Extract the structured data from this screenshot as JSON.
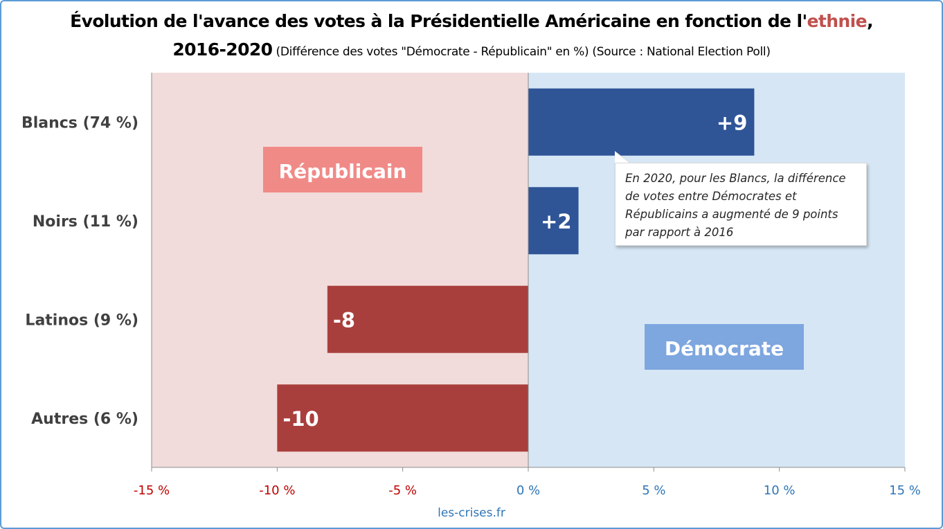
{
  "title": {
    "line1_main": "Évolution de l'avance des votes à la Présidentielle Américaine en fonction de l'",
    "line1_highlight": "ethnie",
    "line1_end": ",",
    "line2_bold": "2016-2020",
    "line2_rest": " (Différence des votes \"Démocrate - Républicain\" en %) (Source : National Election Poll)"
  },
  "chart_data": {
    "type": "bar",
    "orientation": "horizontal",
    "categories": [
      "Blancs (74 %)",
      "Noirs (11 %)",
      "Latinos (9 %)",
      "Autres (6 %)"
    ],
    "values": [
      9,
      2,
      -8,
      -10
    ],
    "data_labels": [
      "+9",
      "+2",
      "-8",
      "-10"
    ],
    "xlim": [
      -15,
      15
    ],
    "x_ticks": [
      -15,
      -10,
      -5,
      0,
      5,
      10,
      15
    ],
    "x_tick_labels": [
      "-15 %",
      "-10 %",
      "-5 %",
      "0 %",
      "5 %",
      "10 %",
      "15 %"
    ],
    "zones": [
      {
        "label": "Républicain",
        "range": [
          -15,
          0
        ]
      },
      {
        "label": "Démocrate",
        "range": [
          0,
          15
        ]
      }
    ],
    "grid": false
  },
  "annotation": {
    "lines": [
      "En 2020, pour les Blancs, la différence",
      "de votes entre Démocrates et",
      "Républicains a augmenté de 9 points",
      "par rapport à 2016"
    ]
  },
  "colors": {
    "positive_bar": "#2f5597",
    "negative_bar": "#a93f3c",
    "republican_zone": "#f2dcdb",
    "democrat_zone": "#d6e6f4",
    "republican_label_bg": "#f08a87",
    "democrat_label_bg": "#7ea6df",
    "negative_tick": "#c00000",
    "positive_tick": "#2e75b6",
    "highlight": "#c0504d"
  },
  "footer": "les-crises.fr"
}
